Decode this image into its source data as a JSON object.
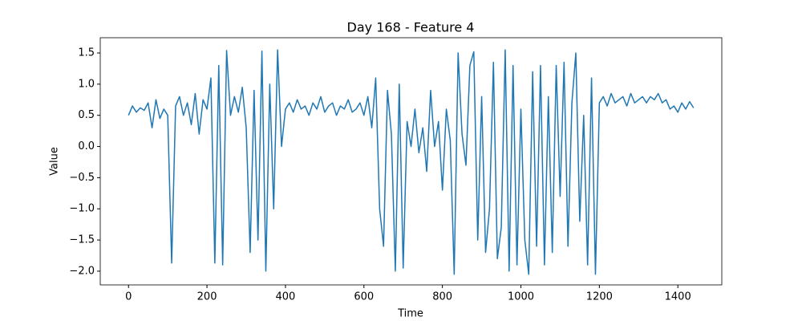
{
  "chart_data": {
    "type": "line",
    "title": "Day 168 - Feature 4",
    "xlabel": "Time",
    "ylabel": "Value",
    "x": [
      0,
      10,
      20,
      30,
      40,
      50,
      60,
      70,
      80,
      90,
      100,
      110,
      120,
      130,
      140,
      150,
      160,
      170,
      180,
      190,
      200,
      210,
      220,
      230,
      240,
      250,
      260,
      270,
      280,
      290,
      300,
      310,
      320,
      330,
      340,
      350,
      360,
      370,
      380,
      390,
      400,
      410,
      420,
      430,
      440,
      450,
      460,
      470,
      480,
      490,
      500,
      510,
      520,
      530,
      540,
      550,
      560,
      570,
      580,
      590,
      600,
      610,
      620,
      630,
      640,
      650,
      660,
      670,
      680,
      690,
      700,
      710,
      720,
      730,
      740,
      750,
      760,
      770,
      780,
      790,
      800,
      810,
      820,
      830,
      840,
      850,
      860,
      870,
      880,
      890,
      900,
      910,
      920,
      930,
      940,
      950,
      960,
      970,
      980,
      990,
      1000,
      1010,
      1020,
      1030,
      1040,
      1050,
      1060,
      1070,
      1080,
      1090,
      1100,
      1110,
      1120,
      1130,
      1140,
      1150,
      1160,
      1170,
      1180,
      1190,
      1200,
      1210,
      1220,
      1230,
      1240,
      1250,
      1260,
      1270,
      1280,
      1290,
      1300,
      1310,
      1320,
      1330,
      1340,
      1350,
      1360,
      1370,
      1380,
      1390,
      1400,
      1410,
      1420,
      1430,
      1440
    ],
    "series": [
      {
        "color": "#1f77b4",
        "values": [
          0.5,
          0.65,
          0.55,
          0.62,
          0.58,
          0.7,
          0.3,
          0.75,
          0.45,
          0.6,
          0.5,
          -1.87,
          0.65,
          0.8,
          0.5,
          0.7,
          0.35,
          0.85,
          0.2,
          0.75,
          0.6,
          1.1,
          -1.87,
          1.3,
          -1.9,
          1.54,
          0.5,
          0.8,
          0.55,
          0.95,
          0.3,
          -1.7,
          0.9,
          -1.5,
          1.53,
          -2.0,
          1.0,
          -1.0,
          1.55,
          0.0,
          0.6,
          0.7,
          0.55,
          0.75,
          0.6,
          0.65,
          0.5,
          0.7,
          0.6,
          0.8,
          0.55,
          0.65,
          0.7,
          0.5,
          0.65,
          0.6,
          0.75,
          0.55,
          0.6,
          0.7,
          0.5,
          0.8,
          0.3,
          1.1,
          -1.0,
          -1.6,
          0.9,
          0.2,
          -2.0,
          1.0,
          -1.95,
          0.4,
          0.0,
          0.6,
          -0.1,
          0.3,
          -0.4,
          0.9,
          0.0,
          0.4,
          -0.7,
          0.6,
          0.1,
          -2.05,
          1.5,
          0.2,
          -0.3,
          1.3,
          1.52,
          -1.5,
          0.8,
          -1.7,
          -1.0,
          1.35,
          -1.8,
          -1.3,
          1.55,
          -2.0,
          1.3,
          -1.9,
          0.6,
          -1.5,
          -2.05,
          1.2,
          -1.6,
          1.3,
          -1.9,
          0.8,
          -1.7,
          1.3,
          -0.8,
          1.35,
          -1.6,
          0.7,
          1.5,
          -1.2,
          0.5,
          -1.9,
          1.1,
          -2.05,
          0.7,
          0.8,
          0.65,
          0.85,
          0.7,
          0.75,
          0.8,
          0.65,
          0.85,
          0.7,
          0.75,
          0.8,
          0.7,
          0.8,
          0.75,
          0.85,
          0.7,
          0.75,
          0.6,
          0.65,
          0.55,
          0.7,
          0.6,
          0.72,
          0.62
        ]
      }
    ],
    "xlim": [
      -72,
      1512
    ],
    "ylim": [
      -2.22,
      1.745
    ],
    "xticks": [
      0,
      200,
      400,
      600,
      800,
      1000,
      1200,
      1400
    ],
    "yticks": [
      {
        "value": -2,
        "label": "−2.0"
      },
      {
        "value": -1.5,
        "label": "−1.5"
      },
      {
        "value": -1,
        "label": "−1.0"
      },
      {
        "value": -0.5,
        "label": "−0.5"
      },
      {
        "value": 0,
        "label": "0.0"
      },
      0.5,
      {
        "value": 1,
        "label": "1.0"
      },
      1.5
    ],
    "grid": false
  }
}
